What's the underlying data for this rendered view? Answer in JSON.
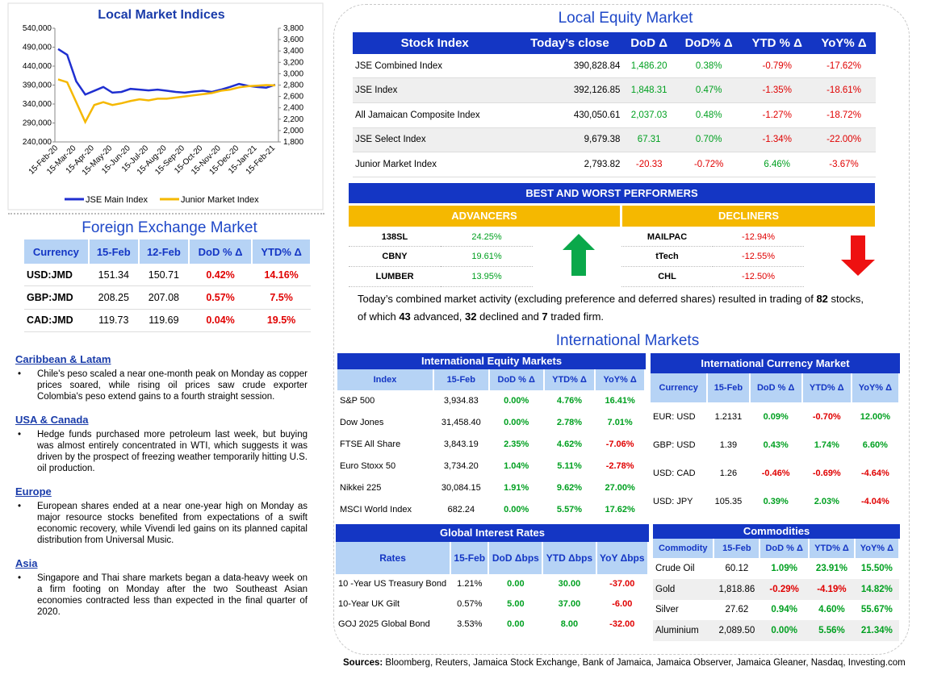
{
  "chart_data": {
    "type": "line",
    "title": "Local Market Indices",
    "x": [
      "15-Feb-20",
      null,
      "15-Mar-20",
      null,
      "15-Apr-20",
      null,
      "15-May-20",
      null,
      "15-Jun-20",
      null,
      "15-Jul-20",
      null,
      "15-Aug-20",
      null,
      "15-Sep-20",
      null,
      "15-Oct-20",
      null,
      "15-Nov-20",
      null,
      "15-Dec-20",
      null,
      "15-Jan-21",
      null,
      "15-Feb-21"
    ],
    "series": [
      {
        "name": "JSE Main Index",
        "color": "#1f2fd0",
        "values": [
          485000,
          470000,
          400000,
          365000,
          375000,
          385000,
          370000,
          372000,
          380000,
          378000,
          376000,
          378000,
          375000,
          372000,
          370000,
          373000,
          375000,
          372000,
          378000,
          385000,
          393000,
          388000,
          385000,
          383000,
          391000
        ]
      },
      {
        "name": "Junior Market Index",
        "color": "#f5b800",
        "axis": "y2",
        "values": [
          2900,
          2850,
          2500,
          2150,
          2450,
          2500,
          2450,
          2480,
          2520,
          2550,
          2530,
          2560,
          2560,
          2580,
          2600,
          2620,
          2640,
          2660,
          2700,
          2720,
          2760,
          2780,
          2790,
          2800,
          2794
        ]
      }
    ],
    "ylim": [
      240000,
      540000
    ],
    "yticks": [
      {
        "value": 240000,
        "label": "240,000"
      },
      {
        "value": 290000,
        "label": "290,000"
      },
      {
        "value": 340000,
        "label": "340,000"
      },
      {
        "value": 390000,
        "label": "390,000"
      },
      {
        "value": 440000,
        "label": "440,000"
      },
      {
        "value": 490000,
        "label": "490,000"
      },
      {
        "value": 540000,
        "label": "540,000"
      }
    ],
    "y2lim": [
      1800,
      3800
    ],
    "y2ticks": [
      {
        "value": 1800,
        "label": "1,800"
      },
      {
        "value": 2000,
        "label": "2,000"
      },
      {
        "value": 2200,
        "label": "2,200"
      },
      {
        "value": 2400,
        "label": "2,400"
      },
      {
        "value": 2600,
        "label": "2,600"
      },
      {
        "value": 2800,
        "label": "2,800"
      },
      {
        "value": 3000,
        "label": "3,000"
      },
      {
        "value": 3200,
        "label": "3,200"
      },
      {
        "value": 3400,
        "label": "3,400"
      },
      {
        "value": 3600,
        "label": "3,600"
      },
      {
        "value": 3800,
        "label": "3,800"
      }
    ]
  },
  "local_equity": {
    "title": "Local Equity Market",
    "headers": [
      "Stock Index",
      "Today’s close",
      "DoD  Δ",
      "DoD% Δ",
      "YTD % Δ",
      "YoY% Δ"
    ],
    "rows": [
      [
        "JSE Combined Index",
        "390,828.84",
        "1,486.20",
        "0.38%",
        "-0.79%",
        "-17.62%"
      ],
      [
        "JSE Index",
        "392,126.85",
        "1,848.31",
        "0.47%",
        "-1.35%",
        "-18.61%"
      ],
      [
        "All Jamaican Composite Index",
        "430,050.61",
        "2,037.03",
        "0.48%",
        "-1.27%",
        "-18.72%"
      ],
      [
        "JSE Select Index",
        "9,679.38",
        "67.31",
        "0.70%",
        "-1.34%",
        "-22.00%"
      ],
      [
        "Junior Market Index",
        "2,793.82",
        "-20.33",
        "-0.72%",
        "6.46%",
        "-3.67%"
      ]
    ]
  },
  "performers": {
    "title": "BEST AND WORST PERFORMERS",
    "advancers_label": "ADVANCERS",
    "decliners_label": "DECLINERS",
    "advancers": [
      [
        "138SL",
        "24.25%"
      ],
      [
        "CBNY",
        "19.61%"
      ],
      [
        "LUMBER",
        "13.95%"
      ]
    ],
    "decliners": [
      [
        "MAILPAC",
        "-12.94%"
      ],
      [
        "tTech",
        "-12.55%"
      ],
      [
        "CHL",
        "-12.50%"
      ]
    ]
  },
  "summary": [
    "Today’s combined market activity (excluding preference and deferred shares) resulted in trading of ",
    "82",
    " stocks, of which ",
    "43",
    " advanced, ",
    "32",
    " declined and ",
    "7",
    " traded firm."
  ],
  "foreign_exchange": {
    "title": "Foreign Exchange Market",
    "headers": [
      "Currency",
      "15-Feb",
      "12-Feb",
      "DoD % Δ",
      "YTD% Δ"
    ],
    "rows": [
      [
        "USD:JMD",
        "151.34",
        "150.71",
        "0.42%",
        "14.16%"
      ],
      [
        "GBP:JMD",
        "208.25",
        "207.08",
        "0.57%",
        "7.5%"
      ],
      [
        "CAD:JMD",
        "119.73",
        "119.69",
        "0.04%",
        "19.5%"
      ]
    ]
  },
  "news": [
    {
      "heading": "Caribbean & Latam",
      "text": "Chile's peso scaled a near one-month peak on Monday as copper prices soared, while rising oil prices saw crude exporter Colombia's peso extend gains to a fourth straight session."
    },
    {
      "heading": "USA & Canada",
      "text": "Hedge funds purchased more petroleum last week, but buying was almost entirely concentrated in WTI, which suggests it was driven by the prospect of freezing weather temporarily hitting U.S. oil production."
    },
    {
      "heading": "Europe",
      "text": "European shares ended at a near one-year high on Monday as major resource stocks benefited from expectations of a swift economic recovery, while Vivendi led gains on its planned capital distribution from Universal Music."
    },
    {
      "heading": "Asia",
      "text": "Singapore and Thai share markets began a data-heavy week on a firm footing on Monday after the two Southeast Asian economies contracted less than expected in the final quarter of 2020."
    }
  ],
  "international": {
    "title": "International Markets",
    "equity": {
      "title": "International Equity Markets",
      "headers": [
        "Index",
        "15-Feb",
        "DoD % Δ",
        "YTD% Δ",
        "YoY% Δ"
      ],
      "rows": [
        [
          "S&P 500",
          "3,934.83",
          "0.00%",
          "4.76%",
          "16.41%"
        ],
        [
          "Dow Jones",
          "31,458.40",
          "0.00%",
          "2.78%",
          "7.01%"
        ],
        [
          "FTSE All Share",
          "3,843.19",
          "2.35%",
          "4.62%",
          "-7.06%"
        ],
        [
          "Euro Stoxx 50",
          "3,734.20",
          "1.04%",
          "5.11%",
          "-2.78%"
        ],
        [
          "Nikkei 225",
          "30,084.15",
          "1.91%",
          "9.62%",
          "27.00%"
        ],
        [
          "MSCI World Index",
          "682.24",
          "0.00%",
          "5.57%",
          "17.62%"
        ]
      ]
    },
    "currency": {
      "title": "International Currency Market",
      "headers": [
        "Currency",
        "15-Feb",
        "DoD % Δ",
        "YTD% Δ",
        "YoY% Δ"
      ],
      "rows": [
        [
          "EUR: USD",
          "1.2131",
          "0.09%",
          "-0.70%",
          "12.00%"
        ],
        [
          "GBP: USD",
          "1.39",
          "0.43%",
          "1.74%",
          "6.60%"
        ],
        [
          "USD: CAD",
          "1.26",
          "-0.46%",
          "-0.69%",
          "-4.64%"
        ],
        [
          "USD: JPY",
          "105.35",
          "0.39%",
          "2.03%",
          "-4.04%"
        ]
      ]
    },
    "rates": {
      "title": "Global Interest Rates",
      "headers": [
        "Rates",
        "15-Feb",
        "DoD Δbps",
        "YTD Δbps",
        "YoY Δbps"
      ],
      "rows": [
        [
          "10 -Year US Treasury Bond",
          "1.21%",
          "0.00",
          "30.00",
          "-37.00"
        ],
        [
          "10-Year UK Gilt",
          "0.57%",
          "5.00",
          "37.00",
          "-6.00"
        ],
        [
          "GOJ 2025 Global Bond",
          "3.53%",
          "0.00",
          "8.00",
          "-32.00"
        ]
      ]
    },
    "commodities": {
      "title": "Commodities",
      "headers": [
        "Commodity",
        "15-Feb",
        "DoD % Δ",
        "YTD% Δ",
        "YoY% Δ"
      ],
      "rows": [
        [
          "Crude Oil",
          "60.12",
          "1.09%",
          "23.91%",
          "15.50%"
        ],
        [
          "Gold",
          "1,818.86",
          "-0.29%",
          "-4.19%",
          "14.82%"
        ],
        [
          "Silver",
          "27.62",
          "0.94%",
          "4.60%",
          "55.67%"
        ],
        [
          "Aluminium",
          "2,089.50",
          "0.00%",
          "5.56%",
          "21.34%"
        ]
      ]
    }
  },
  "sources": {
    "label": "Sources:",
    "text": "Bloomberg, Reuters, Jamaica Stock Exchange, Bank of Jamaica, Jamaica Observer, Jamaica Gleaner, Nasdaq, Investing.com"
  }
}
